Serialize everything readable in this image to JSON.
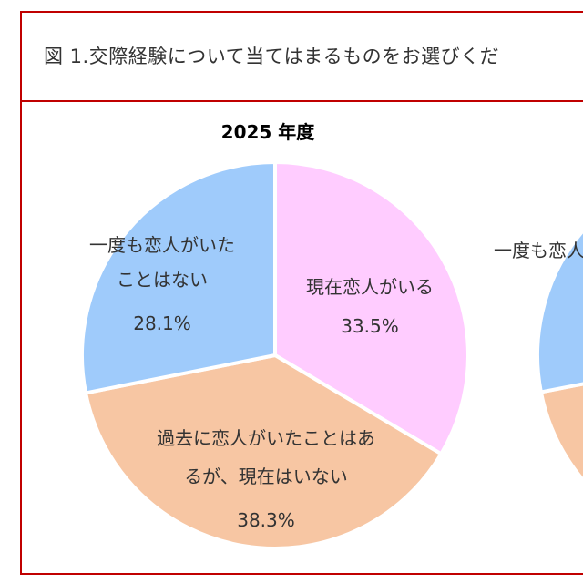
{
  "title": "図 1.交際経験について当てはまるものをお選びくだ",
  "colors": {
    "frame": "#c00000",
    "current": "#ffccff",
    "past": "#f7c6a3",
    "never": "#9fcbfb"
  },
  "chart_data": [
    {
      "type": "pie",
      "title": "2025 年度",
      "slices": [
        {
          "label": "現在恋人がいる",
          "value": 33.5,
          "value_label": "33.5%",
          "color": "#ffccff"
        },
        {
          "label": "過去に恋人がいたことはあるが、現在はいない",
          "value": 38.3,
          "value_label": "38.3%",
          "color": "#f7c6a3"
        },
        {
          "label": "一度も恋人がいたことはない",
          "value": 28.1,
          "value_label": "28.1%",
          "color": "#9fcbfb"
        }
      ]
    },
    {
      "type": "pie",
      "partial": true,
      "slices": [
        {
          "label": "一度も恋人がいたことはない",
          "color": "#9fcbfb"
        },
        {
          "label": "",
          "color": "#f7c6a3"
        }
      ]
    }
  ],
  "labels": {
    "never_1": "一度も恋人がいた",
    "never_2": "ことはない",
    "current": "現在恋人がいる",
    "past_1": "過去に恋人がいたことはあ",
    "past_2": "るが、現在はいない"
  }
}
